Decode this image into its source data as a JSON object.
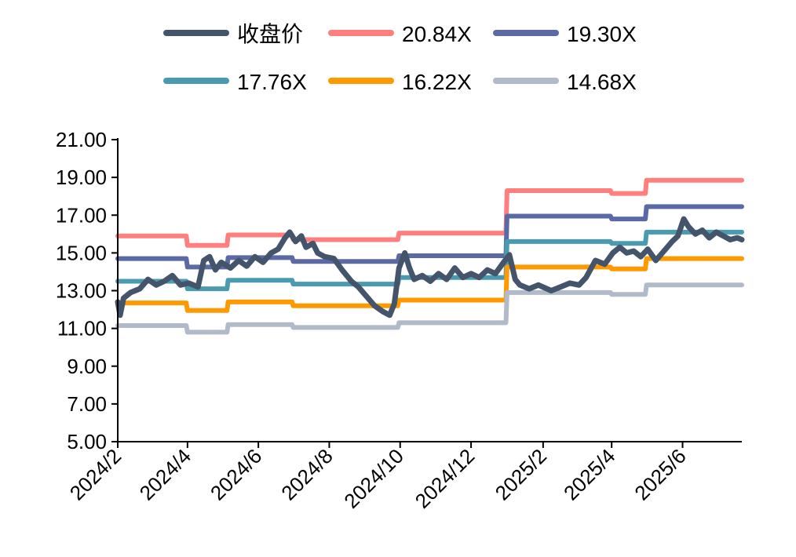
{
  "chart_data": {
    "type": "line",
    "title": "",
    "xlabel": "",
    "ylabel": "",
    "ylim": [
      5,
      21
    ],
    "yticks": [
      "5.00",
      "7.00",
      "9.00",
      "11.00",
      "13.00",
      "15.00",
      "17.00",
      "19.00",
      "21.00"
    ],
    "xticks": [
      "2024/2",
      "2024/4",
      "2024/6",
      "2024/8",
      "2024/10",
      "2024/12",
      "2025/2",
      "2025/4",
      "2025/6"
    ],
    "legend_position": "top",
    "grid": false,
    "series": [
      {
        "name": "收盘价",
        "color": "#44546a",
        "points": [
          [
            "2024-02-01",
            12.4
          ],
          [
            "2024-02-03",
            11.7
          ],
          [
            "2024-02-06",
            12.6
          ],
          [
            "2024-02-12",
            12.9
          ],
          [
            "2024-02-20",
            13.1
          ],
          [
            "2024-02-27",
            13.6
          ],
          [
            "2024-03-05",
            13.3
          ],
          [
            "2024-03-12",
            13.5
          ],
          [
            "2024-03-19",
            13.8
          ],
          [
            "2024-03-26",
            13.3
          ],
          [
            "2024-04-02",
            13.4
          ],
          [
            "2024-04-06",
            13.3
          ],
          [
            "2024-04-10",
            13.2
          ],
          [
            "2024-04-15",
            14.6
          ],
          [
            "2024-04-20",
            14.8
          ],
          [
            "2024-04-25",
            14.1
          ],
          [
            "2024-04-30",
            14.5
          ],
          [
            "2024-05-08",
            14.2
          ],
          [
            "2024-05-15",
            14.6
          ],
          [
            "2024-05-22",
            14.3
          ],
          [
            "2024-05-29",
            14.8
          ],
          [
            "2024-06-05",
            14.5
          ],
          [
            "2024-06-12",
            15.0
          ],
          [
            "2024-06-18",
            15.2
          ],
          [
            "2024-06-24",
            15.8
          ],
          [
            "2024-06-28",
            16.1
          ],
          [
            "2024-07-03",
            15.6
          ],
          [
            "2024-07-08",
            15.9
          ],
          [
            "2024-07-12",
            15.3
          ],
          [
            "2024-07-18",
            15.5
          ],
          [
            "2024-07-22",
            15.0
          ],
          [
            "2024-07-28",
            14.8
          ],
          [
            "2024-08-05",
            14.7
          ],
          [
            "2024-08-12",
            14.1
          ],
          [
            "2024-08-20",
            13.5
          ],
          [
            "2024-08-26",
            13.2
          ],
          [
            "2024-09-02",
            12.7
          ],
          [
            "2024-09-09",
            12.2
          ],
          [
            "2024-09-16",
            11.9
          ],
          [
            "2024-09-22",
            11.7
          ],
          [
            "2024-09-26",
            12.3
          ],
          [
            "2024-09-30",
            14.2
          ],
          [
            "2024-10-05",
            15.0
          ],
          [
            "2024-10-09",
            14.2
          ],
          [
            "2024-10-13",
            13.6
          ],
          [
            "2024-10-20",
            13.8
          ],
          [
            "2024-10-27",
            13.5
          ],
          [
            "2024-11-03",
            13.9
          ],
          [
            "2024-11-10",
            13.6
          ],
          [
            "2024-11-17",
            14.2
          ],
          [
            "2024-11-24",
            13.7
          ],
          [
            "2024-12-01",
            13.9
          ],
          [
            "2024-12-08",
            13.7
          ],
          [
            "2024-12-15",
            14.1
          ],
          [
            "2024-12-22",
            13.9
          ],
          [
            "2024-12-29",
            14.5
          ],
          [
            "2025-01-03",
            14.9
          ],
          [
            "2025-01-08",
            13.6
          ],
          [
            "2025-01-12",
            13.3
          ],
          [
            "2025-01-20",
            13.1
          ],
          [
            "2025-01-28",
            13.3
          ],
          [
            "2025-02-08",
            13.0
          ],
          [
            "2025-02-16",
            13.2
          ],
          [
            "2025-02-24",
            13.4
          ],
          [
            "2025-03-04",
            13.3
          ],
          [
            "2025-03-10",
            13.7
          ],
          [
            "2025-03-18",
            14.6
          ],
          [
            "2025-03-26",
            14.4
          ],
          [
            "2025-04-02",
            15.0
          ],
          [
            "2025-04-08",
            15.3
          ],
          [
            "2025-04-14",
            15.0
          ],
          [
            "2025-04-20",
            15.1
          ],
          [
            "2025-04-26",
            14.8
          ],
          [
            "2025-05-02",
            15.2
          ],
          [
            "2025-05-09",
            14.6
          ],
          [
            "2025-05-16",
            15.1
          ],
          [
            "2025-05-23",
            15.6
          ],
          [
            "2025-05-28",
            15.9
          ],
          [
            "2025-06-02",
            16.8
          ],
          [
            "2025-06-06",
            16.4
          ],
          [
            "2025-06-12",
            16.0
          ],
          [
            "2025-06-18",
            16.2
          ],
          [
            "2025-06-24",
            15.8
          ],
          [
            "2025-06-30",
            16.1
          ],
          [
            "2025-07-06",
            15.9
          ],
          [
            "2025-07-12",
            15.7
          ],
          [
            "2025-07-18",
            15.8
          ],
          [
            "2025-07-22",
            15.7
          ]
        ]
      },
      {
        "name": "20.84X",
        "color": "#ff7f7f",
        "points": [
          [
            "2024-02-01",
            15.9
          ],
          [
            "2024-03-31",
            15.9
          ],
          [
            "2024-04-01",
            15.4
          ],
          [
            "2024-05-05",
            15.4
          ],
          [
            "2024-05-06",
            15.95
          ],
          [
            "2024-06-30",
            15.95
          ],
          [
            "2024-07-01",
            15.7
          ],
          [
            "2024-09-29",
            15.7
          ],
          [
            "2024-09-30",
            16.05
          ],
          [
            "2024-12-31",
            16.05
          ],
          [
            "2025-01-01",
            18.3
          ],
          [
            "2025-03-31",
            18.3
          ],
          [
            "2025-04-01",
            18.15
          ],
          [
            "2025-04-30",
            18.15
          ],
          [
            "2025-05-01",
            18.85
          ],
          [
            "2025-07-22",
            18.85
          ]
        ]
      },
      {
        "name": "19.30X",
        "color": "#5b6aa5",
        "points": [
          [
            "2024-02-01",
            14.7
          ],
          [
            "2024-03-31",
            14.7
          ],
          [
            "2024-04-01",
            14.25
          ],
          [
            "2024-05-05",
            14.25
          ],
          [
            "2024-05-06",
            14.75
          ],
          [
            "2024-06-30",
            14.75
          ],
          [
            "2024-07-01",
            14.55
          ],
          [
            "2024-09-29",
            14.55
          ],
          [
            "2024-09-30",
            14.85
          ],
          [
            "2024-12-31",
            14.85
          ],
          [
            "2025-01-01",
            16.95
          ],
          [
            "2025-03-31",
            16.95
          ],
          [
            "2025-04-01",
            16.8
          ],
          [
            "2025-04-30",
            16.8
          ],
          [
            "2025-05-01",
            17.45
          ],
          [
            "2025-07-22",
            17.45
          ]
        ]
      },
      {
        "name": "17.76X",
        "color": "#4a9bb0",
        "points": [
          [
            "2024-02-01",
            13.5
          ],
          [
            "2024-03-31",
            13.5
          ],
          [
            "2024-04-01",
            13.1
          ],
          [
            "2024-05-05",
            13.1
          ],
          [
            "2024-05-06",
            13.55
          ],
          [
            "2024-06-30",
            13.55
          ],
          [
            "2024-07-01",
            13.35
          ],
          [
            "2024-09-29",
            13.35
          ],
          [
            "2024-09-30",
            13.7
          ],
          [
            "2024-12-31",
            13.7
          ],
          [
            "2025-01-01",
            15.6
          ],
          [
            "2025-03-31",
            15.6
          ],
          [
            "2025-04-01",
            15.5
          ],
          [
            "2025-04-30",
            15.5
          ],
          [
            "2025-05-01",
            16.1
          ],
          [
            "2025-07-22",
            16.1
          ]
        ]
      },
      {
        "name": "16.22X",
        "color": "#ff9900",
        "points": [
          [
            "2024-02-01",
            12.35
          ],
          [
            "2024-03-31",
            12.35
          ],
          [
            "2024-04-01",
            11.95
          ],
          [
            "2024-05-05",
            11.95
          ],
          [
            "2024-05-06",
            12.4
          ],
          [
            "2024-06-30",
            12.4
          ],
          [
            "2024-07-01",
            12.2
          ],
          [
            "2024-09-29",
            12.2
          ],
          [
            "2024-09-30",
            12.5
          ],
          [
            "2024-12-31",
            12.5
          ],
          [
            "2025-01-01",
            14.25
          ],
          [
            "2025-03-31",
            14.25
          ],
          [
            "2025-04-01",
            14.15
          ],
          [
            "2025-04-30",
            14.15
          ],
          [
            "2025-05-01",
            14.7
          ],
          [
            "2025-07-22",
            14.7
          ]
        ]
      },
      {
        "name": "14.68X",
        "color": "#b0bac9",
        "points": [
          [
            "2024-02-01",
            11.15
          ],
          [
            "2024-03-31",
            11.15
          ],
          [
            "2024-04-01",
            10.8
          ],
          [
            "2024-05-05",
            10.8
          ],
          [
            "2024-05-06",
            11.2
          ],
          [
            "2024-06-30",
            11.2
          ],
          [
            "2024-07-01",
            11.05
          ],
          [
            "2024-09-29",
            11.05
          ],
          [
            "2024-09-30",
            11.3
          ],
          [
            "2024-12-31",
            11.3
          ],
          [
            "2025-01-01",
            12.9
          ],
          [
            "2025-03-31",
            12.9
          ],
          [
            "2025-04-01",
            12.8
          ],
          [
            "2025-04-30",
            12.8
          ],
          [
            "2025-05-01",
            13.3
          ],
          [
            "2025-07-22",
            13.3
          ]
        ]
      }
    ]
  }
}
